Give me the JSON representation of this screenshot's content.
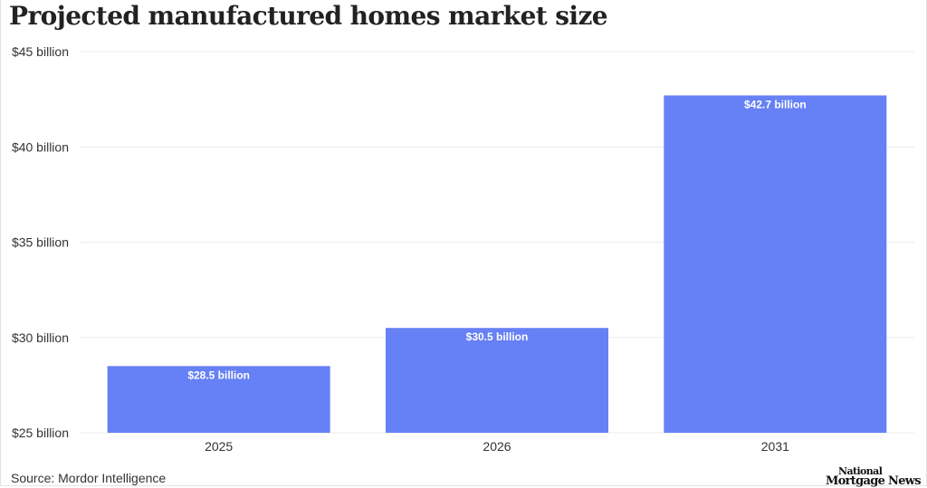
{
  "title": "Projected manufactured homes market size",
  "source": "Source: Mordor Intelligence",
  "logo": {
    "line1": "National",
    "line2": "Mortgage News"
  },
  "colors": {
    "bar": "#6680f5",
    "grid": "#ececec",
    "tick_text": "#333333",
    "bar_label": "#ffffff"
  },
  "chart_data": {
    "type": "bar",
    "title": "Projected manufactured homes market size",
    "xlabel": "",
    "ylabel": "",
    "categories": [
      "2025",
      "2026",
      "2031"
    ],
    "values": [
      28.5,
      30.5,
      42.7
    ],
    "data_labels": [
      "$28.5 billion",
      "$30.5 billion",
      "$42.7 billion"
    ],
    "ylim": [
      25,
      45
    ],
    "yticks": [
      25,
      30,
      35,
      40,
      45
    ],
    "ytick_labels": [
      "$25 billion",
      "$30 billion",
      "$35 billion",
      "$40 billion",
      "$45 billion"
    ],
    "grid": true,
    "legend": "none"
  }
}
